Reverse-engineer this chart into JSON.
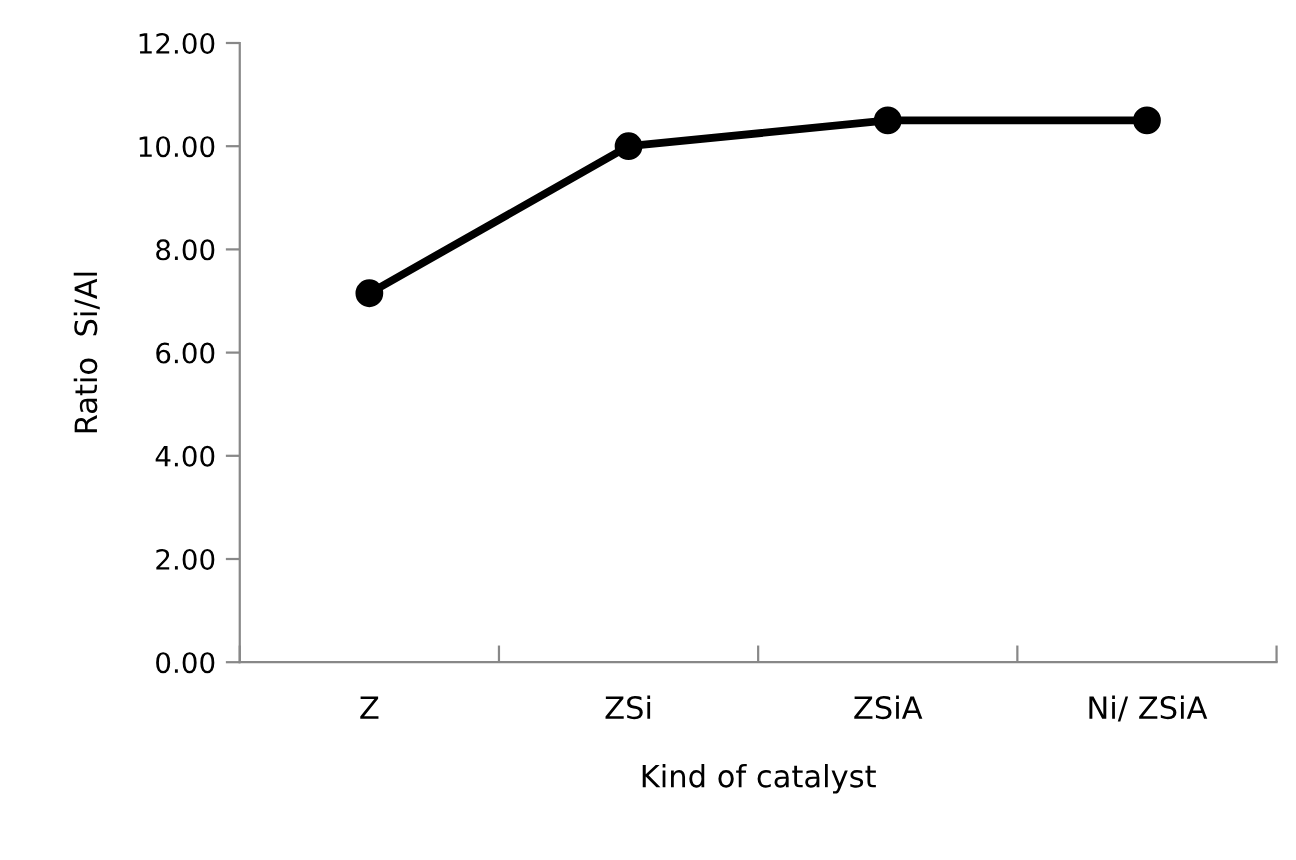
{
  "chart_data": {
    "type": "line",
    "xlabel": "Kind of catalyst",
    "ylabel": "Ratio  Si/Al",
    "categories": [
      "Z",
      "ZSi",
      "ZSiA",
      "Ni/ ZSiA"
    ],
    "series": [
      {
        "color": "#000000",
        "values": [
          7.15,
          10.0,
          10.5,
          10.5
        ]
      }
    ],
    "ylim": [
      0,
      12
    ],
    "yticks": [
      {
        "value": 0,
        "label": "0.00"
      },
      {
        "value": 2,
        "label": "2.00"
      },
      {
        "value": 4,
        "label": "4.00"
      },
      {
        "value": 6,
        "label": "6.00"
      },
      {
        "value": 8,
        "label": "8.00"
      },
      {
        "value": 10,
        "label": "10.00"
      },
      {
        "value": 12,
        "label": "12.00"
      }
    ],
    "grid": false,
    "legend": false,
    "marker": "circle",
    "line_style": "solid"
  }
}
